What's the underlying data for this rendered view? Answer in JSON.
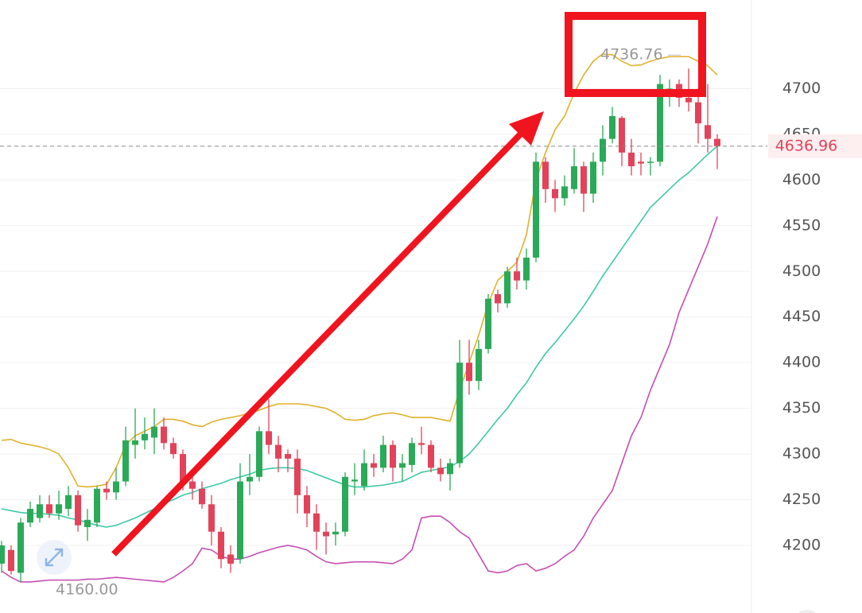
{
  "chart_data": {
    "type": "candlestick",
    "ylim": [
      4126,
      4797
    ],
    "yticks": [
      4200,
      4250,
      4300,
      4350,
      4400,
      4450,
      4500,
      4550,
      4600,
      4650,
      4700
    ],
    "grid": true,
    "up_color": "#2aaa58",
    "down_color": "#e2435a",
    "open": [
      4180,
      4195,
      4170,
      4225,
      4230,
      4245,
      4235,
      4240,
      4255,
      4220,
      4225,
      4262,
      4258,
      4270,
      4310,
      4315,
      4318,
      4330,
      4312,
      4300,
      4270,
      4262,
      4245,
      4215,
      4190,
      4185,
      4270,
      4275,
      4325,
      4310,
      4300,
      4295,
      4255,
      4235,
      4215,
      4212,
      4215,
      4270,
      4265,
      4290,
      4285,
      4310,
      4285,
      4288,
      4312,
      4310,
      4285,
      4278,
      4290,
      4400,
      4380,
      4415,
      4475,
      4465,
      4500,
      4490,
      4515,
      4620,
      4590,
      4580,
      4590,
      4615,
      4585,
      4620,
      4645,
      4668,
      4630,
      4620,
      4620,
      4620,
      4700,
      4705,
      4690,
      4685,
      4660,
      4645
    ],
    "high": [
      4205,
      4200,
      4230,
      4248,
      4255,
      4255,
      4260,
      4265,
      4260,
      4240,
      4265,
      4270,
      4285,
      4330,
      4350,
      4340,
      4350,
      4340,
      4318,
      4305,
      4280,
      4270,
      4255,
      4220,
      4200,
      4290,
      4300,
      4330,
      4360,
      4320,
      4305,
      4305,
      4265,
      4245,
      4225,
      4225,
      4280,
      4290,
      4305,
      4300,
      4320,
      4315,
      4300,
      4318,
      4330,
      4315,
      4295,
      4295,
      4425,
      4425,
      4425,
      4475,
      4480,
      4505,
      4515,
      4525,
      4630,
      4625,
      4600,
      4605,
      4635,
      4620,
      4630,
      4660,
      4680,
      4670,
      4645,
      4630,
      4625,
      4715,
      4710,
      4710,
      4722,
      4700,
      4705,
      4650
    ],
    "low": [
      4170,
      4168,
      4160,
      4220,
      4225,
      4230,
      4228,
      4232,
      4215,
      4205,
      4220,
      4250,
      4250,
      4265,
      4295,
      4305,
      4300,
      4305,
      4295,
      4260,
      4250,
      4240,
      4200,
      4175,
      4170,
      4180,
      4255,
      4270,
      4300,
      4280,
      4280,
      4235,
      4220,
      4195,
      4190,
      4200,
      4210,
      4255,
      4260,
      4275,
      4280,
      4270,
      4270,
      4280,
      4300,
      4280,
      4270,
      4260,
      4285,
      4365,
      4370,
      4410,
      4455,
      4460,
      4480,
      4480,
      4510,
      4575,
      4565,
      4572,
      4585,
      4565,
      4575,
      4605,
      4640,
      4615,
      4605,
      4605,
      4605,
      4615,
      4680,
      4680,
      4675,
      4640,
      4630,
      4612
    ],
    "close": [
      4200,
      4172,
      4225,
      4240,
      4245,
      4235,
      4245,
      4255,
      4222,
      4228,
      4262,
      4258,
      4270,
      4315,
      4315,
      4322,
      4330,
      4312,
      4300,
      4270,
      4262,
      4245,
      4215,
      4185,
      4180,
      4270,
      4275,
      4325,
      4310,
      4295,
      4295,
      4255,
      4235,
      4215,
      4210,
      4215,
      4275,
      4272,
      4290,
      4285,
      4310,
      4285,
      4290,
      4312,
      4310,
      4285,
      4278,
      4290,
      4400,
      4380,
      4415,
      4470,
      4465,
      4500,
      4490,
      4515,
      4620,
      4590,
      4580,
      4593,
      4615,
      4585,
      4620,
      4645,
      4670,
      4630,
      4615,
      4618,
      4620,
      4705,
      4700,
      4690,
      4685,
      4662,
      4645,
      4637
    ],
    "series": [
      {
        "color": "#e0b12c",
        "values": [
          4315,
          4316,
          4312,
          4310,
          4308,
          4305,
          4300,
          4285,
          4265,
          4264,
          4265,
          4267,
          4285,
          4310,
          4320,
          4325,
          4330,
          4338,
          4338,
          4336,
          4332,
          4330,
          4335,
          4338,
          4340,
          4342,
          4345,
          4348,
          4352,
          4355,
          4355,
          4355,
          4354,
          4352,
          4350,
          4345,
          4338,
          4337,
          4338,
          4342,
          4344,
          4345,
          4343,
          4340,
          4340,
          4340,
          4338,
          4336,
          4370,
          4400,
          4430,
          4465,
          4490,
          4500,
          4510,
          4540,
          4600,
          4630,
          4655,
          4670,
          4695,
          4715,
          4730,
          4738,
          4737,
          4730,
          4725,
          4726,
          4730,
          4733,
          4735,
          4735,
          4735,
          4730,
          4725,
          4715
        ]
      },
      {
        "color": "#3ec8a6",
        "values": [
          4240,
          4238,
          4236,
          4235,
          4235,
          4234,
          4233,
          4230,
          4228,
          4225,
          4222,
          4220,
          4222,
          4226,
          4230,
          4235,
          4240,
          4246,
          4250,
          4255,
          4258,
          4262,
          4265,
          4268,
          4272,
          4275,
          4278,
          4282,
          4284,
          4285,
          4285,
          4284,
          4282,
          4278,
          4274,
          4270,
          4266,
          4264,
          4264,
          4265,
          4266,
          4268,
          4270,
          4275,
          4280,
          4282,
          4284,
          4286,
          4292,
          4300,
          4312,
          4325,
          4338,
          4350,
          4365,
          4378,
          4395,
          4410,
          4422,
          4435,
          4448,
          4462,
          4478,
          4495,
          4510,
          4525,
          4540,
          4555,
          4570,
          4580,
          4590,
          4600,
          4608,
          4618,
          4628,
          4637
        ]
      },
      {
        "color": "#c64eb3",
        "values": [
          4172,
          4165,
          4160,
          4160,
          4161,
          4162,
          4162,
          4162,
          4162,
          4163,
          4163,
          4164,
          4165,
          4164,
          4163,
          4162,
          4161,
          4160,
          4165,
          4172,
          4180,
          4197,
          4195,
          4188,
          4185,
          4185,
          4188,
          4192,
          4195,
          4198,
          4200,
          4198,
          4195,
          4188,
          4182,
          4180,
          4181,
          4182,
          4182,
          4182,
          4181,
          4180,
          4185,
          4195,
          4230,
          4232,
          4232,
          4225,
          4215,
          4208,
          4190,
          4172,
          4170,
          4172,
          4178,
          4180,
          4172,
          4175,
          4180,
          4188,
          4195,
          4210,
          4230,
          4245,
          4260,
          4290,
          4320,
          4340,
          4370,
          4395,
          4420,
          4455,
          4480,
          4505,
          4530,
          4560
        ]
      }
    ],
    "last_price": 4636.96,
    "high_label": 4736.76,
    "low_label": {
      "value": 4160,
      "label": "4160.00"
    }
  }
}
